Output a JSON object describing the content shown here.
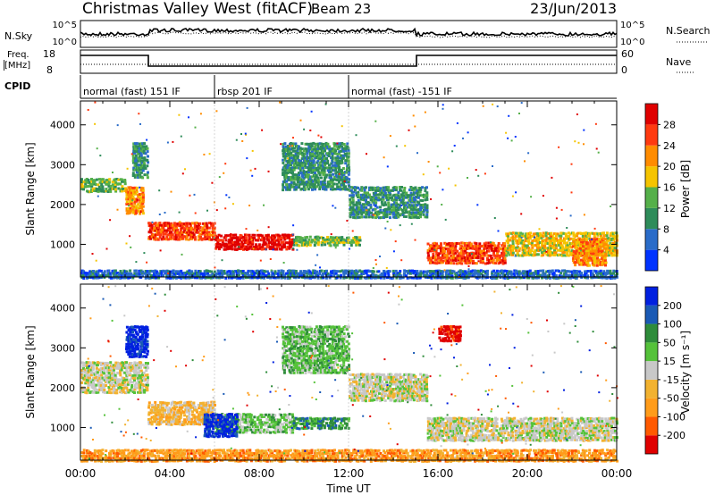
{
  "header": {
    "station": "Christmas Valley West (fitACF)",
    "beam": "Beam 23",
    "date": "23/Jun/2013"
  },
  "top_panels": {
    "nsky_label": "N.Sky",
    "nsky_ticks": [
      "10^5",
      "10^0"
    ],
    "nsearch_label": "N.Search",
    "nsearch_ticks": [
      "10^5",
      "10^0"
    ],
    "freq_label": "Freq.",
    "freq_unit": "[MHz]",
    "freq_ticks": [
      "18",
      "8"
    ],
    "nave_label": "Nave",
    "nave_ticks": [
      "60",
      "0"
    ],
    "cpid_label": "CPID",
    "cpid_segments": [
      {
        "label": "normal (fast) 151 IF",
        "start_h": 0,
        "end_h": 6
      },
      {
        "label": "rbsp 201 IF",
        "start_h": 6,
        "end_h": 12
      },
      {
        "label": "normal (fast) -151 IF",
        "start_h": 12,
        "end_h": 24
      }
    ]
  },
  "chart_data": [
    {
      "type": "heatmap",
      "name": "power",
      "ylabel": "Slant Range [km]",
      "yticks": [
        1000,
        2000,
        3000,
        4000
      ],
      "ylim": [
        180,
        4600
      ],
      "xlim": [
        0,
        24
      ],
      "colorbar_label": "Power [dB]",
      "colorbar_ticks": [
        "4",
        "8",
        "12",
        "16",
        "20",
        "24",
        "28"
      ],
      "colors": [
        "#0033ff",
        "#2a6cc9",
        "#2e8c5a",
        "#55b04a",
        "#f5c400",
        "#ff8c00",
        "#ff3a10",
        "#e00000"
      ],
      "bands": [
        {
          "t0": 0.0,
          "t1": 2.0,
          "r0": 2350,
          "r1": 2700,
          "level": 3
        },
        {
          "t0": 2.0,
          "t1": 2.8,
          "r0": 1800,
          "r1": 2500,
          "level": 5
        },
        {
          "t0": 2.3,
          "t1": 3.0,
          "r0": 2700,
          "r1": 3600,
          "level": 2
        },
        {
          "t0": 3.0,
          "t1": 6.0,
          "r0": 1150,
          "r1": 1600,
          "level": 6
        },
        {
          "t0": 6.0,
          "t1": 9.5,
          "r0": 900,
          "r1": 1300,
          "level": 7
        },
        {
          "t0": 9.5,
          "t1": 12.5,
          "r0": 1000,
          "r1": 1250,
          "level": 3
        },
        {
          "t0": 9.0,
          "t1": 12.0,
          "r0": 2400,
          "r1": 3600,
          "level": 2
        },
        {
          "t0": 12.0,
          "t1": 15.5,
          "r0": 1700,
          "r1": 2500,
          "level": 2
        },
        {
          "t0": 15.5,
          "t1": 19.0,
          "r0": 550,
          "r1": 1100,
          "level": 6
        },
        {
          "t0": 19.0,
          "t1": 24.0,
          "r0": 750,
          "r1": 1350,
          "level": 4
        },
        {
          "t0": 22.0,
          "t1": 23.5,
          "r0": 500,
          "r1": 1200,
          "level": 5
        },
        {
          "t0": 0.0,
          "t1": 24.0,
          "r0": 180,
          "r1": 400,
          "level": 1
        }
      ]
    },
    {
      "type": "heatmap",
      "name": "velocity",
      "ylabel": "Slant Range [km]",
      "yticks": [
        1000,
        2000,
        3000,
        4000
      ],
      "ylim": [
        180,
        4600
      ],
      "xlim": [
        0,
        24
      ],
      "xticks": [
        "00:00",
        "04:00",
        "08:00",
        "12:00",
        "16:00",
        "20:00",
        "00:00"
      ],
      "xlabel": "Time UT",
      "colorbar_label": "Velocity [m s⁻¹]",
      "colorbar_ticks": [
        "200",
        "100",
        "50",
        "15",
        "-15",
        "-50",
        "-100",
        "-200"
      ],
      "colors": [
        "#e00000",
        "#ff5a00",
        "#ff9c1a",
        "#f2b230",
        "#c8c8c8",
        "#55c23a",
        "#2e8c3a",
        "#1a5ab5",
        "#0020e0"
      ],
      "bands": [
        {
          "t0": 0.0,
          "t1": 3.0,
          "r0": 1900,
          "r1": 2700,
          "level": 4
        },
        {
          "t0": 2.0,
          "t1": 3.0,
          "r0": 2800,
          "r1": 3600,
          "level": 8
        },
        {
          "t0": 3.0,
          "t1": 6.0,
          "r0": 1100,
          "r1": 1700,
          "level": 3
        },
        {
          "t0": 6.0,
          "t1": 9.5,
          "r0": 900,
          "r1": 1400,
          "level": 5
        },
        {
          "t0": 5.5,
          "t1": 7.0,
          "r0": 800,
          "r1": 1400,
          "level": 8
        },
        {
          "t0": 9.5,
          "t1": 12.0,
          "r0": 1000,
          "r1": 1300,
          "level": 6
        },
        {
          "t0": 9.0,
          "t1": 12.0,
          "r0": 2400,
          "r1": 3600,
          "level": 5
        },
        {
          "t0": 12.0,
          "t1": 15.5,
          "r0": 1700,
          "r1": 2400,
          "level": 4
        },
        {
          "t0": 15.5,
          "t1": 24.0,
          "r0": 700,
          "r1": 1300,
          "level": 4
        },
        {
          "t0": 16.0,
          "t1": 17.0,
          "r0": 3200,
          "r1": 3600,
          "level": 0
        },
        {
          "t0": 0.0,
          "t1": 24.0,
          "r0": 180,
          "r1": 500,
          "level": 2
        }
      ]
    }
  ]
}
